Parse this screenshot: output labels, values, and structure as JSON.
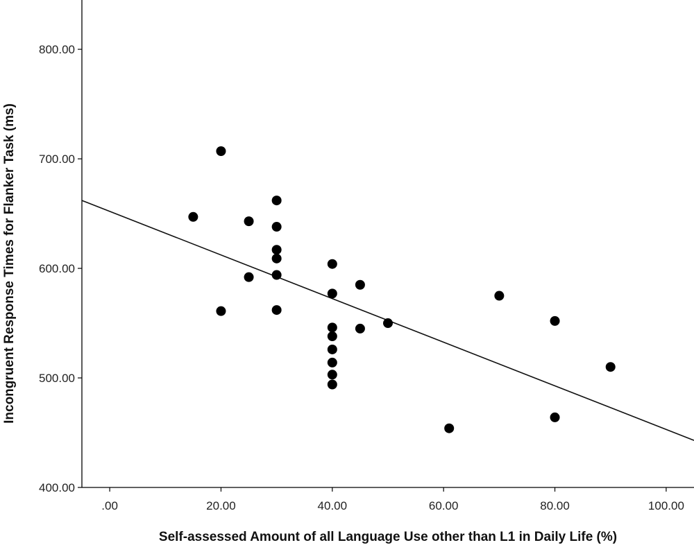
{
  "chart_data": {
    "type": "scatter",
    "title": "",
    "xlabel": "Self-assessed Amount of all Language Use other than L1 in Daily Life (%)",
    "ylabel": "Incongruent Response Times for Flanker Task (ms)",
    "xlim": [
      -5,
      105
    ],
    "ylim": [
      400,
      845
    ],
    "x_ticks": [
      0,
      20,
      40,
      60,
      80,
      100
    ],
    "x_tick_labels": [
      ".00",
      "20.00",
      "40.00",
      "60.00",
      "80.00",
      "100.00"
    ],
    "y_ticks": [
      400,
      500,
      600,
      700,
      800
    ],
    "y_tick_labels": [
      "400.00",
      "500.00",
      "600.00",
      "700.00",
      "800.00"
    ],
    "grid": false,
    "legend": "none",
    "points": [
      {
        "x": 15,
        "y": 647
      },
      {
        "x": 20,
        "y": 707
      },
      {
        "x": 20,
        "y": 561
      },
      {
        "x": 25,
        "y": 643
      },
      {
        "x": 25,
        "y": 592
      },
      {
        "x": 30,
        "y": 662
      },
      {
        "x": 30,
        "y": 638
      },
      {
        "x": 30,
        "y": 617
      },
      {
        "x": 30,
        "y": 609
      },
      {
        "x": 30,
        "y": 594
      },
      {
        "x": 30,
        "y": 562
      },
      {
        "x": 40,
        "y": 604
      },
      {
        "x": 40,
        "y": 577
      },
      {
        "x": 40,
        "y": 546
      },
      {
        "x": 40,
        "y": 538
      },
      {
        "x": 40,
        "y": 526
      },
      {
        "x": 40,
        "y": 514
      },
      {
        "x": 40,
        "y": 503
      },
      {
        "x": 40,
        "y": 494
      },
      {
        "x": 45,
        "y": 585
      },
      {
        "x": 45,
        "y": 545
      },
      {
        "x": 50,
        "y": 550
      },
      {
        "x": 61,
        "y": 454
      },
      {
        "x": 70,
        "y": 575
      },
      {
        "x": 80,
        "y": 552
      },
      {
        "x": 80,
        "y": 464
      },
      {
        "x": 90,
        "y": 510
      }
    ],
    "fit_line": {
      "x": [
        -5,
        105
      ],
      "y": [
        662,
        443
      ]
    },
    "colors": {
      "point": "#000000",
      "line": "#111111",
      "axis": "#000000"
    }
  }
}
